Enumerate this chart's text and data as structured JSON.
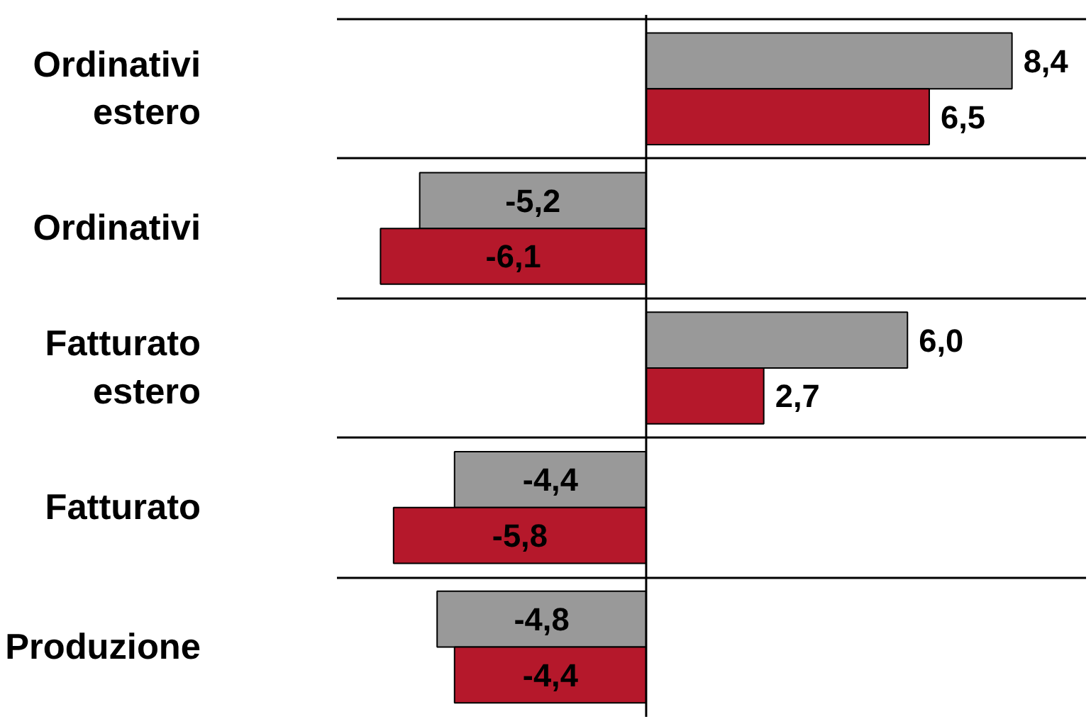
{
  "chart_data": {
    "type": "bar",
    "orientation": "horizontal",
    "categories": [
      "Ordinativi estero",
      "Ordinativi",
      "Fatturato estero",
      "Fatturato",
      "Produzione"
    ],
    "series": [
      {
        "color": "#999999",
        "values": [
          8.4,
          -5.2,
          6.0,
          -4.4,
          -4.8
        ],
        "value_labels": [
          "8,4",
          "-5,2",
          "6,0",
          "-4,4",
          "-4,8"
        ]
      },
      {
        "color": "#b5182b",
        "values": [
          6.5,
          -6.1,
          2.7,
          -5.8,
          -4.4
        ],
        "value_labels": [
          "6,5",
          "-6,1",
          "2,7",
          "-5,8",
          "-4,4"
        ]
      }
    ],
    "xlim": [
      -7.1,
      10.1
    ],
    "tick_labels": "y",
    "grid": "y"
  }
}
